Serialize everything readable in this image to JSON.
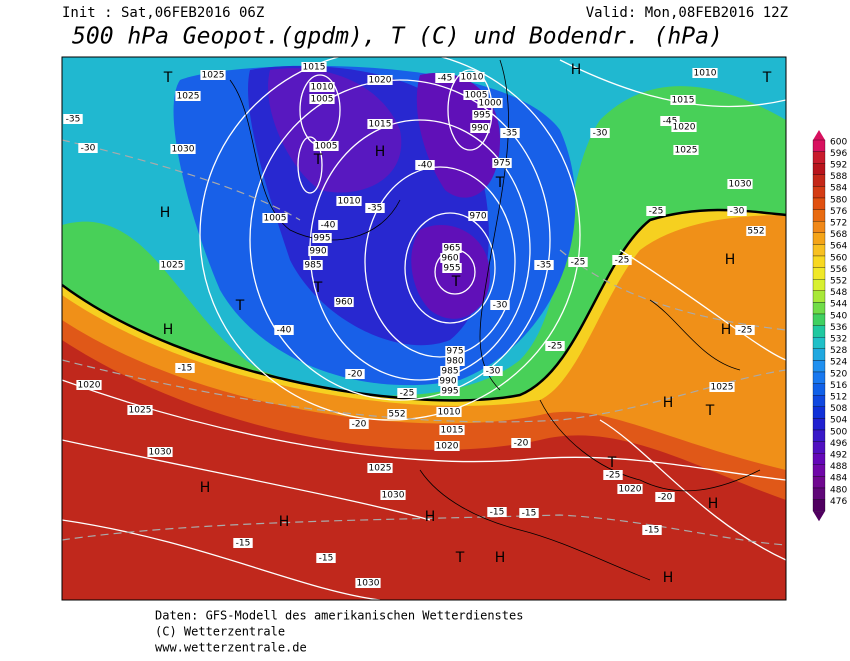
{
  "header": {
    "init": "Init : Sat,06FEB2016 06Z",
    "valid": "Valid: Mon,08FEB2016 12Z",
    "title": "500 hPa Geopot.(gpdm), T (C) und Bodendr. (hPa)"
  },
  "colorbar": {
    "levels": [
      600,
      596,
      592,
      588,
      584,
      580,
      576,
      572,
      568,
      564,
      560,
      556,
      552,
      548,
      544,
      540,
      536,
      532,
      528,
      524,
      520,
      516,
      512,
      508,
      504,
      500,
      496,
      492,
      488,
      484,
      480,
      476
    ],
    "colors": [
      "#d8115f",
      "#c81b2c",
      "#b8141c",
      "#c42818",
      "#d43c14",
      "#e05010",
      "#e86a10",
      "#f08818",
      "#f4a418",
      "#f8c020",
      "#f8d820",
      "#f0e828",
      "#d8f030",
      "#a8e838",
      "#70dc48",
      "#40d060",
      "#20c8a0",
      "#20c0c8",
      "#20a8e0",
      "#2090f0",
      "#1878f0",
      "#1060e8",
      "#1048e0",
      "#1030d8",
      "#2020d0",
      "#3818c8",
      "#5010c0",
      "#6408b8",
      "#7008a8",
      "#700890",
      "#600878",
      "#500060"
    ]
  },
  "map": {
    "labels": [
      "T",
      "1025",
      "1015",
      "1020",
      "1010",
      "-45",
      "H",
      "1010",
      "T",
      "1025",
      "1010",
      "1005",
      "1005",
      "1000",
      "995",
      "990",
      "1015",
      "-35",
      "-35",
      "-30",
      "-45",
      "1020",
      "1015",
      "-30",
      "1030",
      "1005",
      "H",
      "T",
      "975",
      "-40",
      "1025",
      "T",
      "1030",
      "H",
      "1010",
      "-35",
      "1005",
      "-40",
      "995",
      "990",
      "985",
      "970",
      "965",
      "960",
      "955",
      "T",
      "1025",
      "-35",
      "-25",
      "-25",
      "-25",
      "-30",
      "552",
      "H",
      "T",
      "960",
      "T",
      "H",
      "-40",
      "-30",
      "975",
      "980",
      "985",
      "990",
      "995",
      "H",
      "-25",
      "-15",
      "-20",
      "-25",
      "-25",
      "-30",
      "1020",
      "1025",
      "H",
      "T",
      "1025",
      "552",
      "1010",
      "1015",
      "-20",
      "-20",
      "1020",
      "T",
      "-25",
      "1030",
      "1025",
      "1020",
      "-20",
      "H",
      "1030",
      "H",
      "H",
      "H",
      "-15",
      "-15",
      "-15",
      "-15",
      "-15",
      "T",
      "H",
      "H",
      "1030"
    ]
  },
  "footer": {
    "lines": [
      "Daten: GFS-Modell des amerikanischen Wetterdienstes",
      "(C) Wetterzentrale",
      "www.wetterzentrale.de"
    ]
  }
}
